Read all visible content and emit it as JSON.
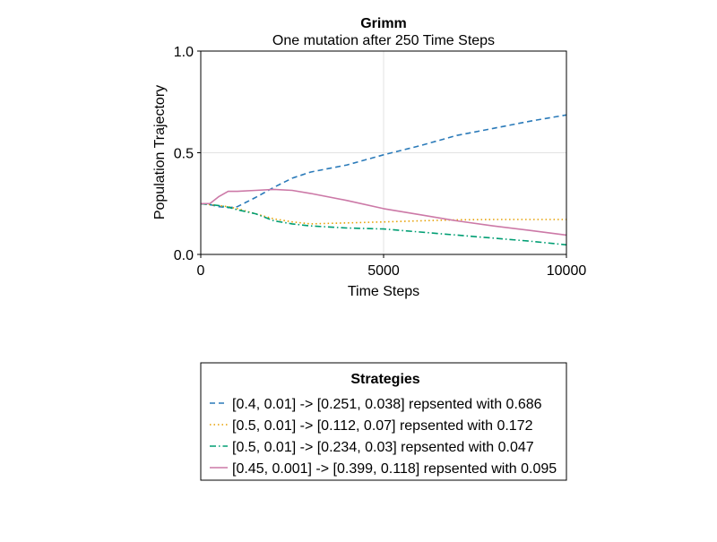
{
  "chart_data": {
    "type": "line",
    "title": "Grimm",
    "subtitle": "One mutation after 250 Time Steps",
    "xlabel": "Time Steps",
    "ylabel": "Population Trajectory",
    "xlim": [
      0,
      10000
    ],
    "ylim": [
      0,
      1.0
    ],
    "xticks": [
      0,
      5000,
      10000
    ],
    "xtick_labels": [
      "0",
      "5000",
      "10000"
    ],
    "yticks": [
      0,
      0.5,
      1.0
    ],
    "ytick_labels": [
      "0.0",
      "0.5",
      "1.0"
    ],
    "grid": true,
    "legend": {
      "title": "Strategies",
      "position": "below"
    },
    "series": [
      {
        "name": "[0.4, 0.01] -> [0.251, 0.038] repsented with 0.686",
        "color": "#2a7ab9",
        "style": "dashed",
        "x": [
          0,
          250,
          500,
          750,
          1000,
          1500,
          2000,
          2500,
          3000,
          4000,
          5000,
          6000,
          7000,
          8000,
          9000,
          10000
        ],
        "y": [
          0.25,
          0.245,
          0.235,
          0.23,
          0.235,
          0.28,
          0.33,
          0.375,
          0.405,
          0.44,
          0.49,
          0.535,
          0.585,
          0.62,
          0.655,
          0.686
        ]
      },
      {
        "name": "[0.5, 0.01] -> [0.112, 0.07] repsented with 0.172",
        "color": "#e69f00",
        "style": "dotted",
        "x": [
          0,
          250,
          500,
          750,
          1000,
          1500,
          2000,
          2500,
          3000,
          4000,
          5000,
          6000,
          7000,
          8000,
          9000,
          10000
        ],
        "y": [
          0.25,
          0.245,
          0.24,
          0.235,
          0.225,
          0.2,
          0.175,
          0.16,
          0.15,
          0.155,
          0.16,
          0.165,
          0.17,
          0.172,
          0.172,
          0.172
        ]
      },
      {
        "name": "[0.5, 0.01] -> [0.234, 0.03] repsented with 0.047",
        "color": "#009e73",
        "style": "dashdot",
        "x": [
          0,
          250,
          500,
          750,
          1000,
          1500,
          2000,
          2500,
          3000,
          4000,
          5000,
          6000,
          7000,
          8000,
          9000,
          10000
        ],
        "y": [
          0.25,
          0.245,
          0.24,
          0.232,
          0.22,
          0.2,
          0.165,
          0.15,
          0.14,
          0.13,
          0.125,
          0.11,
          0.095,
          0.08,
          0.065,
          0.047
        ]
      },
      {
        "name": "[0.45, 0.001] -> [0.399, 0.118] repsented with 0.095",
        "color": "#cc79a7",
        "style": "solid",
        "x": [
          0,
          250,
          500,
          750,
          1000,
          1500,
          2000,
          2500,
          3000,
          4000,
          5000,
          6000,
          7000,
          8000,
          9000,
          10000
        ],
        "y": [
          0.25,
          0.25,
          0.285,
          0.31,
          0.31,
          0.315,
          0.32,
          0.315,
          0.3,
          0.265,
          0.225,
          0.195,
          0.165,
          0.14,
          0.118,
          0.095
        ]
      }
    ]
  }
}
